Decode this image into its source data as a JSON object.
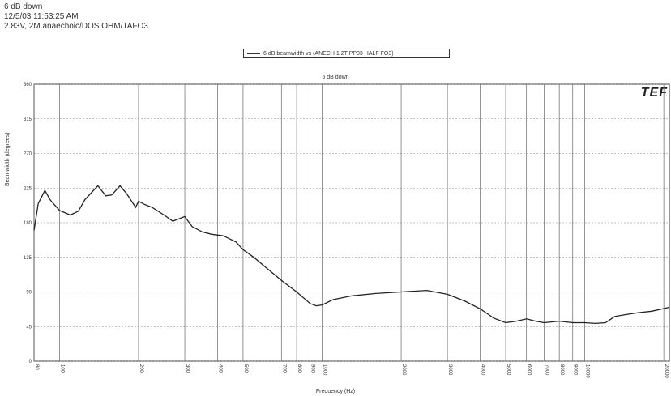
{
  "header": {
    "line1": "6 dB down",
    "line2": "12/5/03 11:53:25 AM",
    "line3": "2.83V, 2M anaechoic/DOS OHM/TAFO3"
  },
  "legend": {
    "label": "6 dB beamwidth vs (ANECH 1 2T PP03 HALF FO3)"
  },
  "chart_data": {
    "type": "line",
    "title": "6 dB down",
    "xlabel": "Frequency (Hz)",
    "ylabel": "Beamwidth (degrees)",
    "xscale": "log",
    "xlim": [
      80,
      21000
    ],
    "ylim": [
      0,
      360
    ],
    "yticks": [
      0,
      45,
      90,
      135,
      180,
      225,
      270,
      315,
      360
    ],
    "ytick_labels": [
      "0",
      "45",
      "90",
      "135",
      "180",
      "225",
      "270",
      "315",
      "360"
    ],
    "xticks": [
      80,
      100,
      200,
      300,
      400,
      500,
      700,
      800,
      900,
      1000,
      2000,
      3000,
      4000,
      5000,
      6000,
      7000,
      8000,
      9000,
      10000,
      20000
    ],
    "xtick_labels": [
      "80",
      "100",
      "200",
      "300",
      "400",
      "500",
      "700",
      "800",
      "900",
      "1000",
      "2000",
      "3000",
      "4000",
      "5000",
      "6000",
      "7000",
      "8000",
      "9000",
      "10000",
      "20000"
    ],
    "grid": true,
    "series": [
      {
        "name": "6 dB beamwidth vs (ANECH 1 2T PP03 HALF FO3)",
        "color": "#222222",
        "x": [
          80,
          83,
          88,
          92,
          100,
          110,
          118,
          125,
          140,
          150,
          158,
          170,
          180,
          195,
          200,
          210,
          225,
          250,
          270,
          300,
          320,
          350,
          380,
          420,
          470,
          500,
          550,
          620,
          700,
          800,
          900,
          950,
          1000,
          1100,
          1300,
          1600,
          2000,
          2500,
          3000,
          3500,
          4000,
          4500,
          5000,
          5500,
          6000,
          6500,
          7000,
          8000,
          9000,
          10000,
          11000,
          12000,
          13000,
          14000,
          16000,
          18000,
          21000
        ],
        "y": [
          170,
          205,
          222,
          210,
          196,
          190,
          195,
          210,
          228,
          215,
          216,
          228,
          218,
          200,
          208,
          204,
          200,
          190,
          182,
          188,
          175,
          168,
          165,
          163,
          155,
          145,
          135,
          120,
          105,
          90,
          75,
          72,
          73,
          80,
          85,
          88,
          90,
          92,
          87,
          78,
          68,
          56,
          50,
          52,
          55,
          52,
          50,
          52,
          50,
          50,
          49,
          50,
          58,
          60,
          63,
          65,
          70
        ]
      }
    ]
  }
}
